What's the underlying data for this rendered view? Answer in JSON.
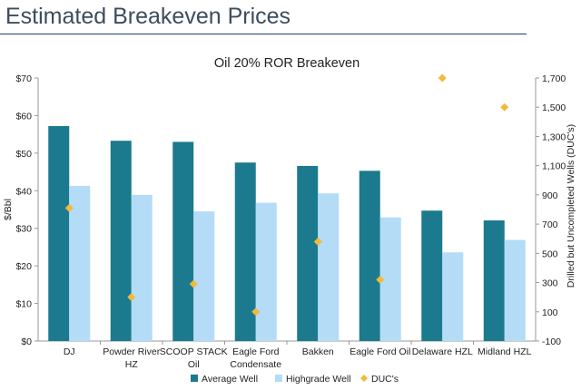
{
  "slide": {
    "title": "Estimated Breakeven Prices"
  },
  "colors": {
    "average": "#1b7a8e",
    "highgrade": "#b4dcf7",
    "duc": "#f2b93b",
    "axis": "#999999"
  },
  "chart_data": {
    "type": "bar",
    "title": "Oil 20% ROR Breakeven",
    "ylabel": "$/Bbl",
    "y2label": "Drilled but Uncompleted Wells (DUC's)",
    "ylim": [
      0,
      70
    ],
    "y2lim": [
      -100,
      1700
    ],
    "yticks": [
      "$0",
      "$10",
      "$20",
      "$30",
      "$40",
      "$50",
      "$60",
      "$70"
    ],
    "y2ticks": [
      "-100",
      "100",
      "300",
      "500",
      "700",
      "900",
      "1,100",
      "1,300",
      "1,500",
      "1,700"
    ],
    "categories": [
      [
        "DJ"
      ],
      [
        "Powder River",
        "HZ"
      ],
      [
        "SCOOP STACK",
        "Oil"
      ],
      [
        "Eagle Ford",
        "Condensate"
      ],
      [
        "Bakken"
      ],
      [
        "Eagle Ford Oil"
      ],
      [
        "Delaware HZL"
      ],
      [
        "Midland HZL"
      ]
    ],
    "series": [
      {
        "name": "Average Well",
        "type": "bar",
        "axis": "left",
        "values": [
          57.2,
          53.3,
          53.0,
          47.5,
          46.6,
          45.3,
          34.7,
          32.1
        ]
      },
      {
        "name": "Highgrade Well",
        "type": "bar",
        "axis": "left",
        "values": [
          41.3,
          38.9,
          34.5,
          36.8,
          39.3,
          32.9,
          23.6,
          26.9
        ]
      },
      {
        "name": "DUC's",
        "type": "scatter",
        "axis": "right",
        "values": [
          810,
          200,
          290,
          100,
          580,
          320,
          1700,
          1500
        ]
      }
    ],
    "legend_position": "bottom",
    "grid": false
  }
}
